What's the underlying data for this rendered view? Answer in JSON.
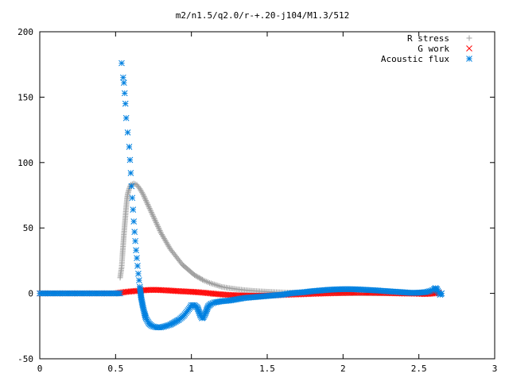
{
  "chart_data": {
    "type": "scatter",
    "title": "m2/n1.5/q2.0/r-+.20-j104/M1.3/512",
    "xlabel": "",
    "ylabel": "",
    "xlim": [
      0,
      3
    ],
    "ylim": [
      -50,
      200
    ],
    "xticks": [
      "0",
      "0.5",
      "1",
      "1.5",
      "2",
      "2.5",
      "3"
    ],
    "yticks": [
      "-50",
      "0",
      "50",
      "100",
      "150",
      "200"
    ],
    "grid": false,
    "legend_position": "top-right",
    "series": [
      {
        "name": "R stress",
        "marker": "plus",
        "color": "#a0a0a0",
        "points": [
          [
            0.53,
            12
          ],
          [
            0.54,
            20
          ],
          [
            0.545,
            29
          ],
          [
            0.55,
            37
          ],
          [
            0.555,
            45
          ],
          [
            0.56,
            52
          ],
          [
            0.565,
            59
          ],
          [
            0.57,
            66
          ],
          [
            0.575,
            72
          ],
          [
            0.58,
            76
          ],
          [
            0.59,
            80
          ],
          [
            0.6,
            83
          ],
          [
            0.62,
            84
          ],
          [
            0.64,
            83
          ],
          [
            0.66,
            80
          ],
          [
            0.68,
            76
          ],
          [
            0.7,
            71
          ],
          [
            0.72,
            66
          ],
          [
            0.74,
            61
          ],
          [
            0.76,
            56
          ],
          [
            0.78,
            51
          ],
          [
            0.8,
            46
          ],
          [
            0.82,
            42
          ],
          [
            0.84,
            38
          ],
          [
            0.86,
            34
          ],
          [
            0.88,
            31
          ],
          [
            0.9,
            28
          ],
          [
            0.92,
            25
          ],
          [
            0.94,
            22
          ],
          [
            0.96,
            20
          ],
          [
            0.98,
            18
          ],
          [
            1.0,
            16
          ],
          [
            1.02,
            14
          ],
          [
            1.05,
            12
          ],
          [
            1.08,
            10
          ],
          [
            1.12,
            8
          ],
          [
            1.16,
            6.5
          ],
          [
            1.2,
            5
          ],
          [
            1.25,
            4
          ],
          [
            1.3,
            3.2
          ],
          [
            1.35,
            2.5
          ],
          [
            1.4,
            2
          ],
          [
            1.45,
            1.6
          ],
          [
            1.5,
            1.3
          ],
          [
            1.55,
            1
          ],
          [
            1.6,
            0.8
          ],
          [
            1.7,
            0.5
          ],
          [
            1.8,
            0.3
          ],
          [
            1.9,
            0.2
          ],
          [
            2.0,
            0.1
          ],
          [
            2.2,
            0
          ],
          [
            2.4,
            0
          ],
          [
            2.6,
            0
          ]
        ]
      },
      {
        "name": "G work",
        "marker": "cross",
        "color": "#ff0000",
        "points": [
          [
            0,
            0
          ],
          [
            0.1,
            0
          ],
          [
            0.2,
            0
          ],
          [
            0.3,
            0
          ],
          [
            0.4,
            0
          ],
          [
            0.5,
            0
          ],
          [
            0.53,
            0.5
          ],
          [
            0.56,
            1
          ],
          [
            0.6,
            1.5
          ],
          [
            0.65,
            2
          ],
          [
            0.7,
            2.5
          ],
          [
            0.75,
            2.7
          ],
          [
            0.8,
            2.5
          ],
          [
            0.85,
            2.2
          ],
          [
            0.9,
            1.8
          ],
          [
            0.95,
            1.5
          ],
          [
            1.0,
            1.2
          ],
          [
            1.05,
            0.8
          ],
          [
            1.1,
            0.3
          ],
          [
            1.15,
            -0.3
          ],
          [
            1.2,
            -0.8
          ],
          [
            1.25,
            -1.2
          ],
          [
            1.3,
            -1.5
          ],
          [
            1.35,
            -1.7
          ],
          [
            1.4,
            -1.8
          ],
          [
            1.45,
            -1.8
          ],
          [
            1.5,
            -1.7
          ],
          [
            1.55,
            -1.5
          ],
          [
            1.6,
            -1.2
          ],
          [
            1.7,
            -0.8
          ],
          [
            1.8,
            -0.4
          ],
          [
            1.9,
            0
          ],
          [
            2.0,
            0.3
          ],
          [
            2.1,
            0.5
          ],
          [
            2.2,
            0.4
          ],
          [
            2.3,
            0.2
          ],
          [
            2.4,
            -0.1
          ],
          [
            2.5,
            -0.3
          ],
          [
            2.55,
            -0.5
          ],
          [
            2.6,
            0
          ],
          [
            2.63,
            0.5
          ]
        ]
      },
      {
        "name": "Acoustic flux",
        "marker": "star",
        "color": "#0080e0",
        "points": [
          [
            0,
            0
          ],
          [
            0.1,
            0
          ],
          [
            0.2,
            0
          ],
          [
            0.3,
            0
          ],
          [
            0.4,
            0
          ],
          [
            0.5,
            0
          ],
          [
            0.53,
            0
          ],
          [
            0.54,
            176
          ],
          [
            0.55,
            165
          ],
          [
            0.555,
            161
          ],
          [
            0.56,
            153
          ],
          [
            0.565,
            145
          ],
          [
            0.57,
            134
          ],
          [
            0.58,
            123
          ],
          [
            0.59,
            112
          ],
          [
            0.595,
            102
          ],
          [
            0.6,
            92
          ],
          [
            0.605,
            82
          ],
          [
            0.61,
            73
          ],
          [
            0.615,
            64
          ],
          [
            0.62,
            55
          ],
          [
            0.625,
            47
          ],
          [
            0.63,
            40
          ],
          [
            0.635,
            33
          ],
          [
            0.64,
            27
          ],
          [
            0.645,
            21
          ],
          [
            0.65,
            15
          ],
          [
            0.655,
            10
          ],
          [
            0.66,
            5
          ],
          [
            0.665,
            0
          ],
          [
            0.67,
            -4
          ],
          [
            0.68,
            -10
          ],
          [
            0.69,
            -15
          ],
          [
            0.7,
            -19
          ],
          [
            0.72,
            -23
          ],
          [
            0.74,
            -25
          ],
          [
            0.77,
            -26
          ],
          [
            0.8,
            -26
          ],
          [
            0.83,
            -25
          ],
          [
            0.86,
            -24
          ],
          [
            0.89,
            -22
          ],
          [
            0.92,
            -20
          ],
          [
            0.95,
            -17
          ],
          [
            0.97,
            -14
          ],
          [
            0.99,
            -11
          ],
          [
            1.0,
            -9
          ],
          [
            1.02,
            -9
          ],
          [
            1.04,
            -11
          ],
          [
            1.05,
            -14
          ],
          [
            1.06,
            -17
          ],
          [
            1.07,
            -19
          ],
          [
            1.08,
            -18
          ],
          [
            1.09,
            -16
          ],
          [
            1.1,
            -13
          ],
          [
            1.11,
            -10
          ],
          [
            1.13,
            -8
          ],
          [
            1.15,
            -7
          ],
          [
            1.2,
            -6
          ],
          [
            1.25,
            -5.5
          ],
          [
            1.3,
            -4.5
          ],
          [
            1.35,
            -3.5
          ],
          [
            1.4,
            -3
          ],
          [
            1.45,
            -2.5
          ],
          [
            1.5,
            -2
          ],
          [
            1.55,
            -1.5
          ],
          [
            1.6,
            -1
          ],
          [
            1.65,
            0
          ],
          [
            1.7,
            0.5
          ],
          [
            1.75,
            1
          ],
          [
            1.8,
            1.7
          ],
          [
            1.85,
            2.2
          ],
          [
            1.9,
            2.7
          ],
          [
            1.95,
            3
          ],
          [
            2.0,
            3.2
          ],
          [
            2.05,
            3.2
          ],
          [
            2.1,
            3
          ],
          [
            2.15,
            2.7
          ],
          [
            2.2,
            2.4
          ],
          [
            2.25,
            2
          ],
          [
            2.3,
            1.6
          ],
          [
            2.35,
            1.2
          ],
          [
            2.4,
            0.8
          ],
          [
            2.45,
            0.4
          ],
          [
            2.5,
            0.5
          ],
          [
            2.55,
            1
          ],
          [
            2.58,
            2
          ],
          [
            2.6,
            3
          ],
          [
            2.61,
            4
          ],
          [
            2.62,
            3
          ],
          [
            2.63,
            1
          ],
          [
            2.64,
            -1
          ],
          [
            2.65,
            0
          ]
        ]
      }
    ]
  }
}
